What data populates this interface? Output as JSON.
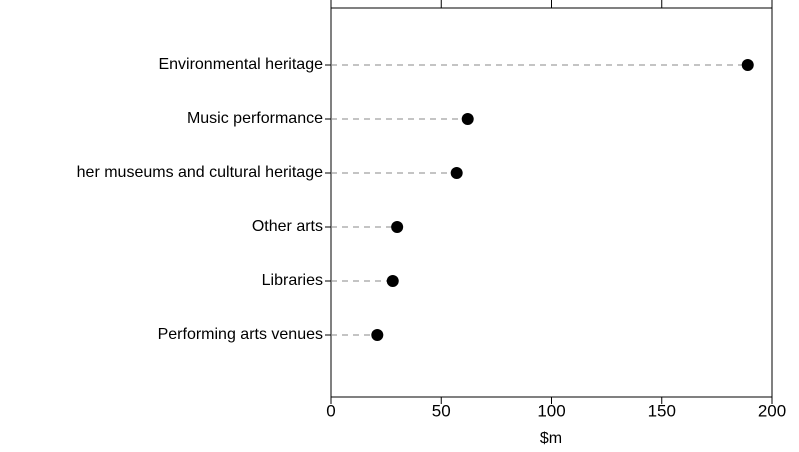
{
  "chart_data": {
    "type": "dot",
    "categories": [
      "Environmental heritage",
      "Music performance",
      "her museums and cultural heritage",
      "Other arts",
      "Libraries",
      "Performing arts venues"
    ],
    "values": [
      189,
      62,
      57,
      30,
      28,
      21
    ],
    "color": "#000000",
    "xlabel": "$m",
    "xlim": [
      0,
      200
    ],
    "xticks": [
      0,
      50,
      100,
      150,
      200
    ]
  }
}
